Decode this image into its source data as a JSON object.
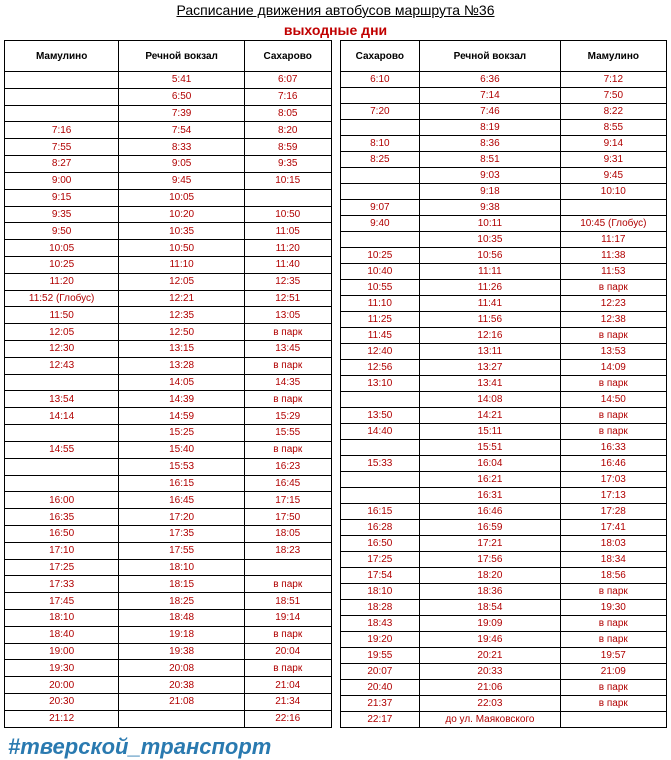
{
  "title": "Расписание движения автобусов маршрута №36",
  "subtitle": "выходные дни",
  "hashtag": "#тверской_транспорт",
  "tables": {
    "left": {
      "headers": [
        "Мамулино",
        "Речной вокзал",
        "Сахарово"
      ],
      "rows": [
        [
          "",
          "5:41",
          "6:07"
        ],
        [
          "",
          "6:50",
          "7:16"
        ],
        [
          "",
          "7:39",
          "8:05"
        ],
        [
          "7:16",
          "7:54",
          "8:20"
        ],
        [
          "7:55",
          "8:33",
          "8:59"
        ],
        [
          "8:27",
          "9:05",
          "9:35"
        ],
        [
          "9:00",
          "9:45",
          "10:15"
        ],
        [
          "9:15",
          "10:05",
          ""
        ],
        [
          "9:35",
          "10:20",
          "10:50"
        ],
        [
          "9:50",
          "10:35",
          "11:05"
        ],
        [
          "10:05",
          "10:50",
          "11:20"
        ],
        [
          "10:25",
          "11:10",
          "11:40"
        ],
        [
          "11:20",
          "12:05",
          "12:35"
        ],
        [
          "11:52 (Глобус)",
          "12:21",
          "12:51"
        ],
        [
          "11:50",
          "12:35",
          "13:05"
        ],
        [
          "12:05",
          "12:50",
          "в парк"
        ],
        [
          "12:30",
          "13:15",
          "13:45"
        ],
        [
          "12:43",
          "13:28",
          "в парк"
        ],
        [
          "",
          "14:05",
          "14:35"
        ],
        [
          "13:54",
          "14:39",
          "в парк"
        ],
        [
          "14:14",
          "14:59",
          "15:29"
        ],
        [
          "",
          "15:25",
          "15:55"
        ],
        [
          "14:55",
          "15:40",
          "в парк"
        ],
        [
          "",
          "15:53",
          "16:23"
        ],
        [
          "",
          "16:15",
          "16:45"
        ],
        [
          "16:00",
          "16:45",
          "17:15"
        ],
        [
          "16:35",
          "17:20",
          "17:50"
        ],
        [
          "16:50",
          "17:35",
          "18:05"
        ],
        [
          "17:10",
          "17:55",
          "18:23"
        ],
        [
          "17:25",
          "18:10",
          ""
        ],
        [
          "17:33",
          "18:15",
          "в парк"
        ],
        [
          "17:45",
          "18:25",
          "18:51"
        ],
        [
          "18:10",
          "18:48",
          "19:14"
        ],
        [
          "18:40",
          "19:18",
          "в парк"
        ],
        [
          "19:00",
          "19:38",
          "20:04"
        ],
        [
          "19:30",
          "20:08",
          "в парк"
        ],
        [
          "20:00",
          "20:38",
          "21:04"
        ],
        [
          "20:30",
          "21:08",
          "21:34"
        ],
        [
          "21:12",
          "",
          "22:16"
        ]
      ]
    },
    "right": {
      "headers": [
        "Сахарово",
        "Речной вокзал",
        "Мамулино"
      ],
      "rows": [
        [
          "6:10",
          "6:36",
          "7:12"
        ],
        [
          "",
          "7:14",
          "7:50"
        ],
        [
          "7:20",
          "7:46",
          "8:22"
        ],
        [
          "",
          "8:19",
          "8:55"
        ],
        [
          "8:10",
          "8:36",
          "9:14"
        ],
        [
          "8:25",
          "8:51",
          "9:31"
        ],
        [
          "",
          "9:03",
          "9:45"
        ],
        [
          "",
          "9:18",
          "10:10"
        ],
        [
          "9:07",
          "9:38",
          ""
        ],
        [
          "9:40",
          "10:11",
          "10:45 (Глобус)"
        ],
        [
          "",
          "10:35",
          "11:17"
        ],
        [
          "10:25",
          "10:56",
          "11:38"
        ],
        [
          "10:40",
          "11:11",
          "11:53"
        ],
        [
          "10:55",
          "11:26",
          "в парк"
        ],
        [
          "11:10",
          "11:41",
          "12:23"
        ],
        [
          "11:25",
          "11:56",
          "12:38"
        ],
        [
          "11:45",
          "12:16",
          "в парк"
        ],
        [
          "12:40",
          "13:11",
          "13:53"
        ],
        [
          "12:56",
          "13:27",
          "14:09"
        ],
        [
          "13:10",
          "13:41",
          "в парк"
        ],
        [
          "",
          "14:08",
          "14:50"
        ],
        [
          "13:50",
          "14:21",
          "в парк"
        ],
        [
          "14:40",
          "15:11",
          "в парк"
        ],
        [
          "",
          "15:51",
          "16:33"
        ],
        [
          "15:33",
          "16:04",
          "16:46"
        ],
        [
          "",
          "16:21",
          "17:03"
        ],
        [
          "",
          "16:31",
          "17:13"
        ],
        [
          "16:15",
          "16:46",
          "17:28"
        ],
        [
          "16:28",
          "16:59",
          "17:41"
        ],
        [
          "16:50",
          "17:21",
          "18:03"
        ],
        [
          "17:25",
          "17:56",
          "18:34"
        ],
        [
          "17:54",
          "18:20",
          "18:56"
        ],
        [
          "18:10",
          "18:36",
          "в парк"
        ],
        [
          "18:28",
          "18:54",
          "19:30"
        ],
        [
          "18:43",
          "19:09",
          "в парк"
        ],
        [
          "19:20",
          "19:46",
          "в парк"
        ],
        [
          "19:55",
          "20:21",
          "19:57"
        ],
        [
          "20:07",
          "20:33",
          "21:09"
        ],
        [
          "20:40",
          "21:06",
          "в парк"
        ],
        [
          "21:37",
          "22:03",
          "в парк"
        ],
        [
          "22:17",
          "до ул. Маяковского",
          ""
        ]
      ]
    }
  }
}
